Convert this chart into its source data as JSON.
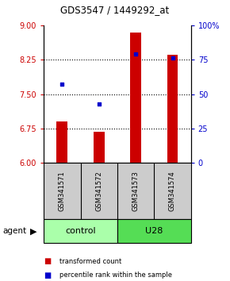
{
  "title": "GDS3547 / 1449292_at",
  "samples": [
    "GSM341571",
    "GSM341572",
    "GSM341573",
    "GSM341574"
  ],
  "red_values": [
    6.9,
    6.68,
    8.85,
    8.35
  ],
  "blue_values": [
    57,
    43,
    79,
    76
  ],
  "ylim_left": [
    6,
    9
  ],
  "ylim_right": [
    0,
    100
  ],
  "yticks_left": [
    6,
    6.75,
    7.5,
    8.25,
    9
  ],
  "yticks_right": [
    0,
    25,
    50,
    75,
    100
  ],
  "ytick_labels_right": [
    "0",
    "25",
    "50",
    "75",
    "100%"
  ],
  "groups": [
    {
      "label": "control",
      "indices": [
        0,
        1
      ],
      "color": "#aaffaa"
    },
    {
      "label": "U28",
      "indices": [
        2,
        3
      ],
      "color": "#55dd55"
    }
  ],
  "agent_label": "agent",
  "legend": [
    {
      "label": "transformed count",
      "color": "#cc0000"
    },
    {
      "label": "percentile rank within the sample",
      "color": "#0000cc"
    }
  ],
  "bar_color": "#cc0000",
  "dot_color": "#0000cc",
  "bar_width": 0.3,
  "left_tick_color": "#cc0000",
  "right_tick_color": "#0000cc",
  "grid_yticks": [
    6.75,
    7.5,
    8.25
  ]
}
